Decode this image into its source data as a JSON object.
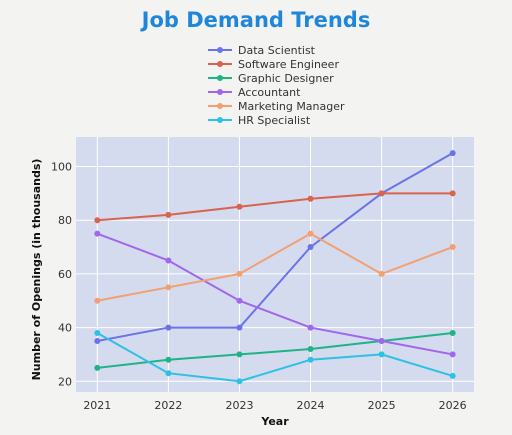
{
  "chart_data": {
    "type": "line",
    "title": "Job Demand Trends",
    "xlabel": "Year",
    "ylabel": "Number of Openings (in thousands)",
    "x": [
      2021,
      2022,
      2023,
      2024,
      2025,
      2026
    ],
    "x_ticks": [
      "2021",
      "2022",
      "2023",
      "2024",
      "2025",
      "2026"
    ],
    "y_ticks": [
      "20",
      "40",
      "60",
      "80",
      "100"
    ],
    "y_tick_values": [
      20,
      40,
      60,
      80,
      100
    ],
    "xlim": [
      2020.7,
      2026.3
    ],
    "ylim": [
      16,
      111
    ],
    "grid": true,
    "legend_position": "top",
    "plot_bg": "#d4dbee",
    "series": [
      {
        "name": "Data Scientist",
        "color": "#6b74e6",
        "values": [
          35,
          40,
          40,
          70,
          90,
          105
        ]
      },
      {
        "name": "Software Engineer",
        "color": "#d9634c",
        "values": [
          80,
          82,
          85,
          88,
          90,
          90
        ]
      },
      {
        "name": "Graphic Designer",
        "color": "#1fb387",
        "values": [
          25,
          28,
          30,
          32,
          35,
          38
        ]
      },
      {
        "name": "Accountant",
        "color": "#a066ee",
        "values": [
          75,
          65,
          50,
          40,
          35,
          30
        ]
      },
      {
        "name": "Marketing Manager",
        "color": "#f3a071",
        "values": [
          50,
          55,
          60,
          75,
          60,
          70
        ]
      },
      {
        "name": "HR Specialist",
        "color": "#2ec1e4",
        "values": [
          38,
          23,
          20,
          28,
          30,
          22
        ]
      }
    ]
  }
}
